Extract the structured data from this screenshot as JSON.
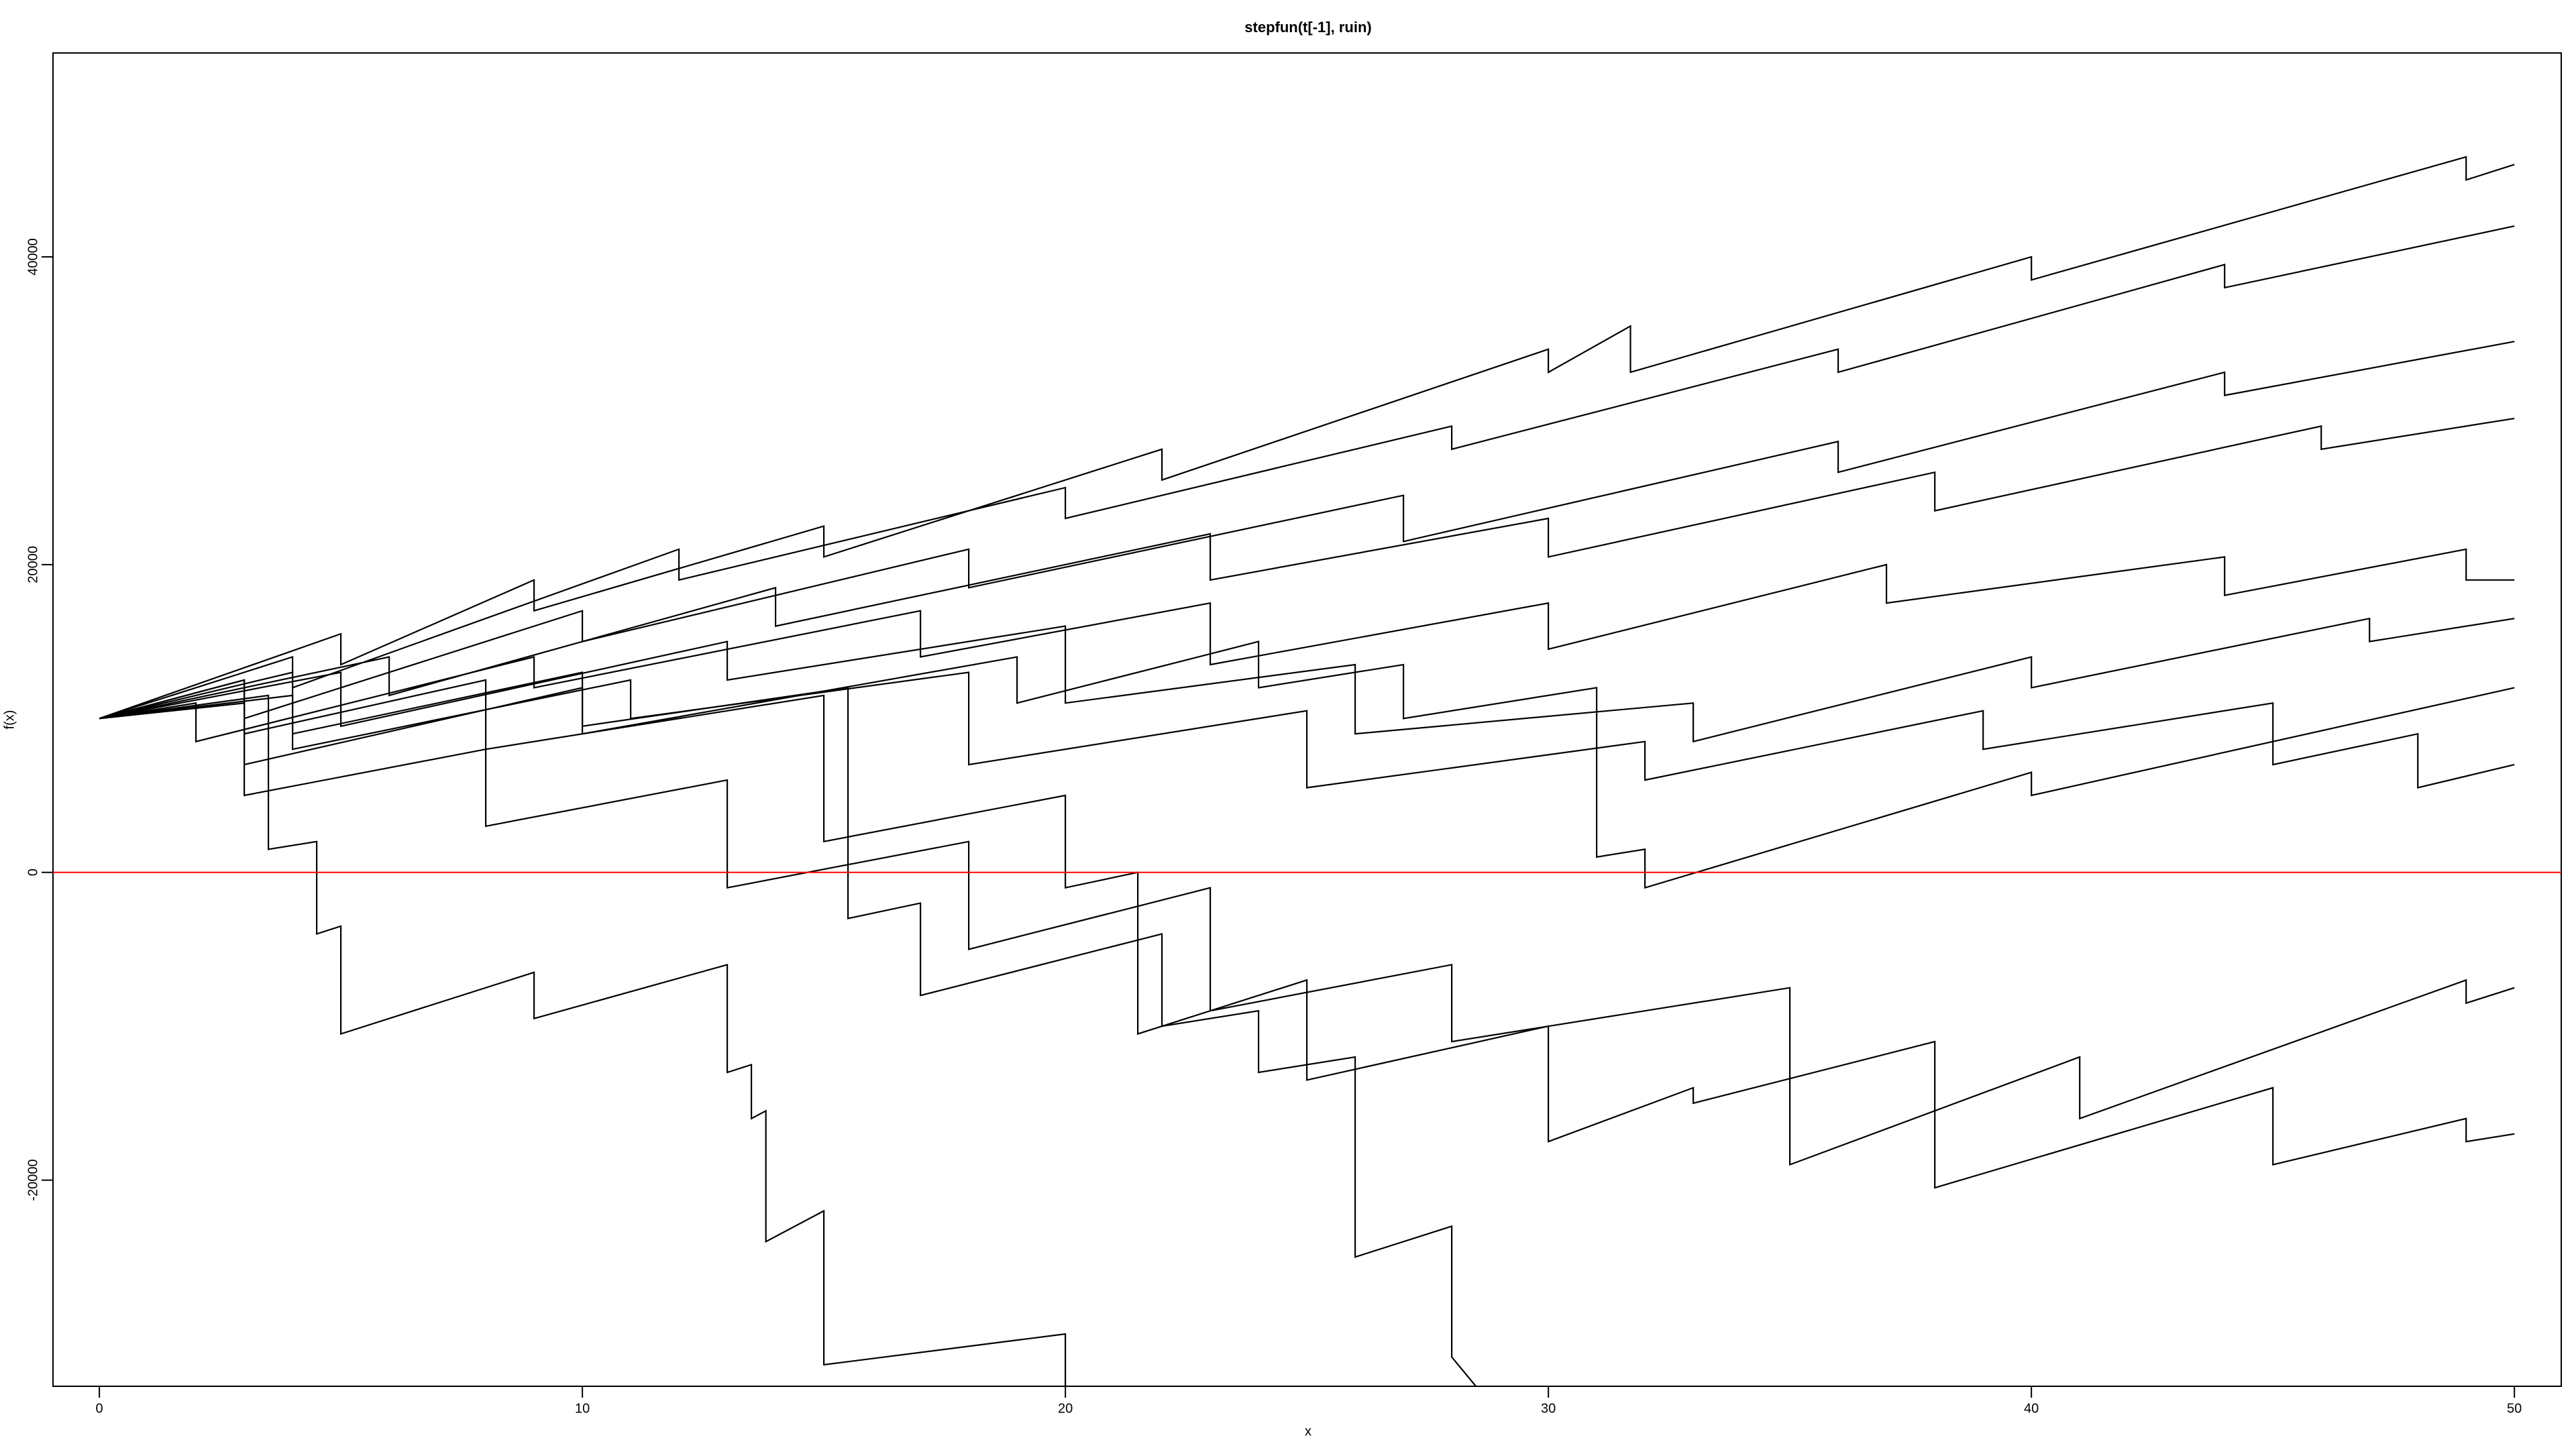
{
  "chart_data": {
    "type": "line",
    "title": "stepfun(t[-1], ruin)",
    "x_label": "x",
    "y_label": "f(x)",
    "xlim": [
      -0.96,
      50.97
    ],
    "ylim": [
      -33400,
      53250
    ],
    "xticks": [
      0,
      10,
      20,
      30,
      40,
      50
    ],
    "yticks": [
      -20000,
      0,
      20000,
      40000
    ],
    "line_color": "#000000",
    "hline": {
      "value": 0,
      "color": "#ff0000"
    },
    "series": [
      {
        "x": [
          0,
          5,
          5,
          9,
          9,
          15,
          15,
          22,
          22,
          30,
          30,
          31.7,
          31.7,
          40,
          40,
          49,
          49,
          50
        ],
        "values": [
          10000,
          15500,
          13500,
          19000,
          17000,
          22500,
          20500,
          27500,
          25500,
          34000,
          32500,
          35500,
          32500,
          40000,
          38500,
          46500,
          45000,
          46000
        ]
      },
      {
        "x": [
          0,
          4,
          4,
          12,
          12,
          20,
          20,
          28,
          28,
          36,
          36,
          44,
          44,
          50
        ],
        "values": [
          10000,
          14000,
          12000,
          21000,
          19000,
          25000,
          23000,
          29000,
          27500,
          34000,
          32500,
          39500,
          38000,
          42000
        ]
      },
      {
        "x": [
          0,
          3,
          3,
          10,
          10,
          18,
          18,
          27,
          27,
          36,
          36,
          44,
          44,
          50
        ],
        "values": [
          10000,
          12500,
          10000,
          17000,
          15000,
          21000,
          18500,
          24500,
          21500,
          28000,
          26000,
          32500,
          31000,
          34500
        ]
      },
      {
        "x": [
          0,
          6,
          6,
          14,
          14,
          23,
          23,
          30,
          30,
          38,
          38,
          46,
          46,
          50
        ],
        "values": [
          10000,
          14000,
          11500,
          18500,
          16000,
          22000,
          19000,
          23000,
          20500,
          26000,
          23500,
          29000,
          27500,
          29500
        ]
      },
      {
        "x": [
          0,
          2,
          2,
          9,
          9,
          17,
          17,
          23,
          23,
          30,
          30,
          37,
          37,
          44,
          44,
          49,
          49,
          50
        ],
        "values": [
          10000,
          11000,
          8500,
          14000,
          12000,
          17000,
          14000,
          17500,
          13500,
          17500,
          14500,
          20000,
          17500,
          20500,
          18000,
          21000,
          19000,
          19000
        ]
      },
      {
        "x": [
          0,
          5,
          5,
          13,
          13,
          20,
          20,
          26,
          26,
          33,
          33,
          40,
          40,
          47,
          47,
          50
        ],
        "values": [
          10000,
          13000,
          9500,
          15000,
          12500,
          16000,
          11000,
          13500,
          9000,
          11000,
          8500,
          14000,
          12000,
          16500,
          15000,
          16500
        ]
      },
      {
        "x": [
          0,
          4,
          4,
          11,
          11,
          18,
          18,
          25,
          25,
          32,
          32,
          39,
          39,
          45,
          45,
          48,
          48,
          50
        ],
        "values": [
          10000,
          11500,
          8000,
          12500,
          10000,
          13000,
          7000,
          10500,
          5500,
          8500,
          6000,
          10500,
          8000,
          11000,
          7000,
          9000,
          5500,
          7000
        ]
      },
      {
        "x": [
          0,
          3,
          3,
          10,
          10,
          19,
          19,
          24,
          24,
          27,
          27,
          31,
          31,
          32,
          32,
          40,
          40,
          50
        ],
        "values": [
          10000,
          11000,
          7000,
          12000,
          9000,
          14000,
          11000,
          15000,
          12000,
          13500,
          10000,
          12000,
          1000,
          1500,
          -1000,
          6500,
          5000,
          12000
        ]
      },
      {
        "x": [
          0,
          3,
          3,
          8,
          8,
          13,
          13,
          18,
          18,
          23,
          23,
          28,
          28,
          35,
          35,
          41,
          41,
          49,
          49,
          50
        ],
        "values": [
          10000,
          11000,
          5000,
          8000,
          3000,
          6000,
          -1000,
          2000,
          -5000,
          -1000,
          -9000,
          -6000,
          -11000,
          -7500,
          -19000,
          -12000,
          -16000,
          -7000,
          -8500,
          -7500
        ]
      },
      {
        "x": [
          0,
          3.5,
          3.5,
          4.5,
          4.5,
          5,
          5,
          9,
          9,
          13,
          13,
          13.5,
          13.5,
          13.8,
          13.8,
          15,
          15,
          20,
          20
        ],
        "values": [
          10000,
          11500,
          1500,
          2000,
          -4000,
          -3500,
          -10500,
          -6500,
          -9500,
          -6000,
          -13000,
          -12500,
          -16000,
          -15500,
          -24000,
          -22000,
          -32000,
          -30000,
          -33400
        ]
      },
      {
        "x": [
          0,
          4,
          4,
          10,
          10,
          15.5,
          15.5,
          17,
          17,
          22,
          22,
          24,
          24,
          26,
          26,
          28,
          28,
          28.5
        ],
        "values": [
          10000,
          13000,
          9000,
          13000,
          9500,
          12000,
          -3000,
          -2000,
          -8000,
          -4000,
          -10000,
          -9000,
          -13000,
          -12000,
          -25000,
          -23000,
          -31500,
          -33400
        ]
      },
      {
        "x": [
          0,
          3,
          3,
          8,
          8,
          15,
          15,
          20,
          20,
          21.5,
          21.5,
          25,
          25,
          30,
          30,
          33,
          33,
          38,
          38,
          45,
          45,
          49,
          49,
          50
        ],
        "values": [
          10000,
          12500,
          9000,
          12500,
          8000,
          11500,
          2000,
          5000,
          -1000,
          0,
          -10500,
          -7000,
          -13500,
          -10000,
          -17500,
          -14000,
          -15000,
          -11000,
          -20500,
          -14000,
          -19000,
          -16000,
          -17500,
          -17000
        ]
      }
    ]
  }
}
